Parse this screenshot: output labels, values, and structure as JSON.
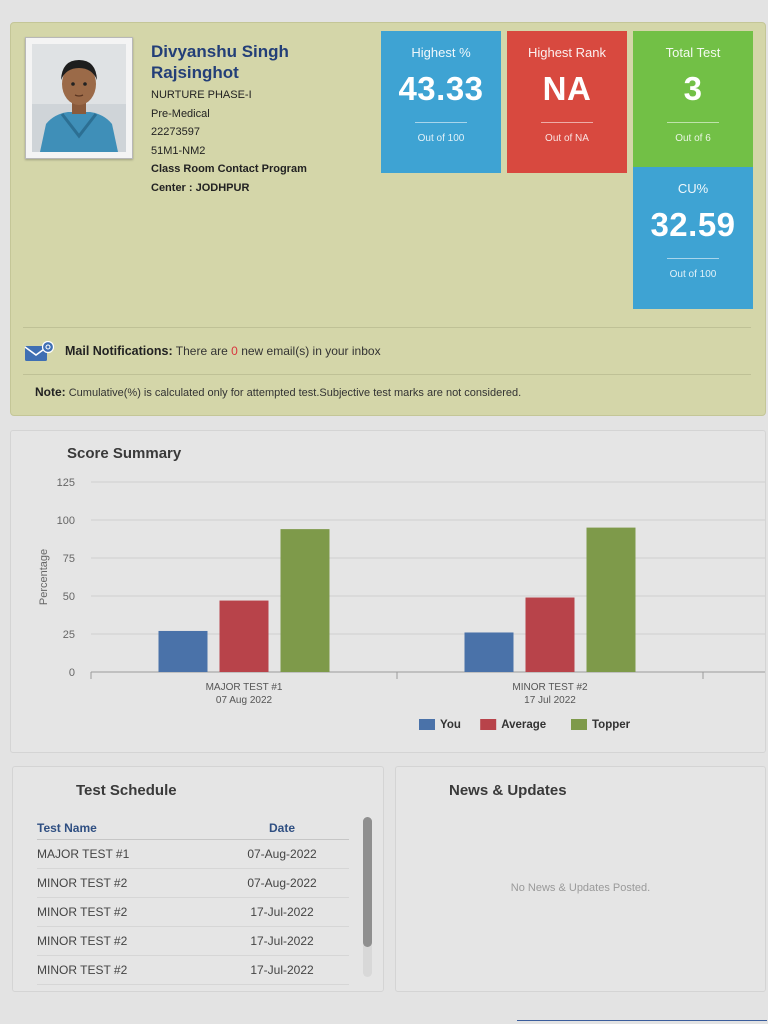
{
  "profile": {
    "name_line1": "Divyanshu Singh",
    "name_line2": "Rajsinghot",
    "course": "NURTURE PHASE-I",
    "stream": "Pre-Medical",
    "form_no": "22273597",
    "batch": "51M1-NM2",
    "program": "Class Room Contact Program",
    "center": "Center : JODHPUR"
  },
  "stats": {
    "highest_percent": {
      "title": "Highest %",
      "value": "43.33",
      "sub": "Out of 100",
      "color": "#3ea3d3"
    },
    "highest_rank": {
      "title": "Highest Rank",
      "value": "NA",
      "sub": "Out of NA",
      "color": "#d8493f"
    },
    "total_test": {
      "title": "Total Test",
      "value": "3",
      "sub": "Out of 6",
      "color": "#72c046"
    },
    "cu_percent": {
      "title": "CU%",
      "value": "32.59",
      "sub": "Out of 100",
      "color": "#3ea3d3"
    }
  },
  "mail": {
    "icon": "mail-icon",
    "label": "Mail Notifications:",
    "text_before": "There are",
    "count": "0",
    "text_after": "new email(s) in your inbox"
  },
  "note": {
    "label": "Note:",
    "text": "Cumulative(%) is calculated only for attempted test.Subjective test marks are not considered."
  },
  "score_summary": {
    "title": "Score Summary"
  },
  "chart_data": {
    "type": "bar",
    "ylabel": "Percentage",
    "xlabel": "",
    "ylim": [
      0,
      125
    ],
    "yticks": [
      0,
      25,
      50,
      75,
      100,
      125
    ],
    "grid": true,
    "legend": "bottom-center",
    "categories": [
      {
        "line1": "MAJOR TEST #1",
        "line2": "07 Aug 2022"
      },
      {
        "line1": "MINOR TEST #2",
        "line2": "17 Jul 2022"
      }
    ],
    "series": [
      {
        "name": "You",
        "color": "#4a72a9",
        "values": [
          27,
          26
        ]
      },
      {
        "name": "Average",
        "color": "#b8434a",
        "values": [
          47,
          49
        ]
      },
      {
        "name": "Topper",
        "color": "#7e9a4a",
        "values": [
          94,
          95
        ]
      }
    ]
  },
  "schedule": {
    "title": "Test Schedule",
    "col_name": "Test Name",
    "col_date": "Date",
    "rows": [
      {
        "name": "MAJOR TEST #1",
        "date": "07-Aug-2022"
      },
      {
        "name": "MINOR TEST #2",
        "date": "07-Aug-2022"
      },
      {
        "name": "MINOR TEST #2",
        "date": "17-Jul-2022"
      },
      {
        "name": "MINOR TEST #2",
        "date": "17-Jul-2022"
      },
      {
        "name": "MINOR TEST #2",
        "date": "17-Jul-2022"
      }
    ]
  },
  "news": {
    "title": "News & Updates",
    "empty_text": "No News & Updates Posted."
  }
}
